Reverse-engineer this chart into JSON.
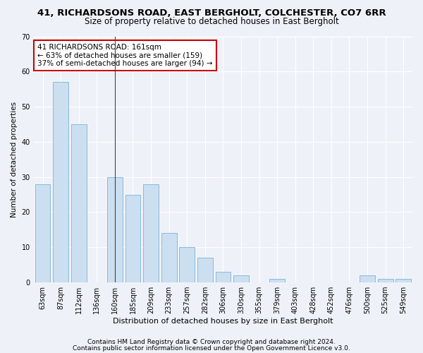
{
  "title1": "41, RICHARDSONS ROAD, EAST BERGHOLT, COLCHESTER, CO7 6RR",
  "title2": "Size of property relative to detached houses in East Bergholt",
  "xlabel": "Distribution of detached houses by size in East Bergholt",
  "ylabel": "Number of detached properties",
  "categories": [
    "63sqm",
    "87sqm",
    "112sqm",
    "136sqm",
    "160sqm",
    "185sqm",
    "209sqm",
    "233sqm",
    "257sqm",
    "282sqm",
    "306sqm",
    "330sqm",
    "355sqm",
    "379sqm",
    "403sqm",
    "428sqm",
    "452sqm",
    "476sqm",
    "500sqm",
    "525sqm",
    "549sqm"
  ],
  "values": [
    28,
    57,
    45,
    0,
    30,
    25,
    28,
    14,
    10,
    7,
    3,
    2,
    0,
    1,
    0,
    0,
    0,
    0,
    2,
    1,
    1
  ],
  "bar_color": "#ccdff0",
  "bar_edge_color": "#7ab3d4",
  "vline_index": 4,
  "vline_color": "#444444",
  "ylim": [
    0,
    70
  ],
  "yticks": [
    0,
    10,
    20,
    30,
    40,
    50,
    60,
    70
  ],
  "annotation_text": "41 RICHARDSONS ROAD: 161sqm\n← 63% of detached houses are smaller (159)\n37% of semi-detached houses are larger (94) →",
  "annotation_box_color": "#ffffff",
  "annotation_box_edge_color": "#cc0000",
  "footer1": "Contains HM Land Registry data © Crown copyright and database right 2024.",
  "footer2": "Contains public sector information licensed under the Open Government Licence v3.0.",
  "background_color": "#eef2f8",
  "grid_color": "#ffffff",
  "title1_fontsize": 9.5,
  "title2_fontsize": 8.5,
  "xlabel_fontsize": 8,
  "ylabel_fontsize": 7.5,
  "tick_fontsize": 7,
  "annotation_fontsize": 7.5,
  "footer_fontsize": 6.5
}
